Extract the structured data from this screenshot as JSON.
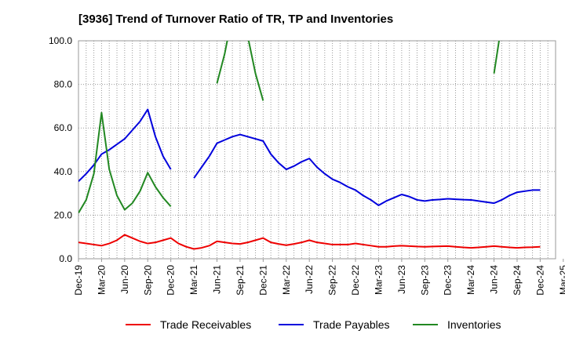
{
  "chart_data": {
    "type": "line",
    "title": "[3936]  Trend of Turnover Ratio of TR, TP and Inventories",
    "xlabel": "",
    "ylabel": "",
    "ylim": [
      0,
      100
    ],
    "yticks": [
      "0.0",
      "20.0",
      "40.0",
      "60.0",
      "80.0",
      "100.0"
    ],
    "xtick_labels": [
      "Dec-19",
      "Mar-20",
      "Jun-20",
      "Sep-20",
      "Dec-20",
      "Mar-21",
      "Jun-21",
      "Sep-21",
      "Dec-21",
      "Mar-22",
      "Jun-22",
      "Sep-22",
      "Dec-22",
      "Mar-23",
      "Jun-23",
      "Sep-23",
      "Dec-23",
      "Mar-24",
      "Jun-24",
      "Sep-24",
      "Dec-24",
      "Mar-25"
    ],
    "grid": true,
    "legend_position": "bottom",
    "x": [
      "Dec-19",
      "Jan-20",
      "Feb-20",
      "Mar-20",
      "Apr-20",
      "May-20",
      "Jun-20",
      "Jul-20",
      "Aug-20",
      "Sep-20",
      "Oct-20",
      "Nov-20",
      "Dec-20",
      "Jan-21",
      "Feb-21",
      "Mar-21",
      "Apr-21",
      "May-21",
      "Jun-21",
      "Jul-21",
      "Aug-21",
      "Sep-21",
      "Oct-21",
      "Nov-21",
      "Dec-21",
      "Jan-22",
      "Feb-22",
      "Mar-22",
      "Apr-22",
      "May-22",
      "Jun-22",
      "Jul-22",
      "Aug-22",
      "Sep-22",
      "Oct-22",
      "Nov-22",
      "Dec-22",
      "Jan-23",
      "Feb-23",
      "Mar-23",
      "Apr-23",
      "May-23",
      "Jun-23",
      "Jul-23",
      "Aug-23",
      "Sep-23",
      "Oct-23",
      "Nov-23",
      "Dec-23",
      "Jan-24",
      "Feb-24",
      "Mar-24",
      "Apr-24",
      "May-24",
      "Jun-24",
      "Jul-24",
      "Aug-24",
      "Sep-24",
      "Oct-24",
      "Nov-24",
      "Dec-24"
    ],
    "series": [
      {
        "name": "Trade Receivables",
        "color": "#ee0000",
        "values": [
          7.5,
          7.0,
          6.5,
          6.0,
          7.0,
          8.5,
          11.0,
          9.5,
          8.0,
          7.0,
          7.5,
          8.5,
          9.5,
          7.0,
          5.5,
          4.5,
          5.0,
          6.0,
          8.0,
          7.5,
          7.0,
          6.8,
          7.5,
          8.5,
          9.5,
          7.5,
          6.8,
          6.2,
          6.8,
          7.5,
          8.5,
          7.5,
          7.0,
          6.5,
          6.5,
          6.5,
          7.0,
          6.5,
          6.0,
          5.5,
          5.5,
          5.8,
          6.0,
          5.8,
          5.6,
          5.5,
          5.6,
          5.7,
          5.8,
          5.5,
          5.2,
          5.0,
          5.2,
          5.5,
          5.8,
          5.5,
          5.2,
          5.0,
          5.2,
          5.3,
          5.5
        ]
      },
      {
        "name": "Trade Payables",
        "color": "#0000dd",
        "values": [
          35.5,
          39.0,
          43.0,
          48.0,
          50.0,
          52.5,
          55.0,
          59.0,
          63.0,
          68.5,
          56.0,
          47.0,
          41.0,
          null,
          null,
          37.0,
          42.0,
          47.0,
          53.0,
          54.5,
          56.0,
          57.0,
          56.0,
          55.0,
          54.0,
          48.0,
          44.0,
          41.0,
          42.5,
          44.5,
          46.0,
          42.0,
          39.0,
          36.5,
          35.0,
          33.0,
          31.5,
          29.0,
          27.0,
          24.5,
          26.5,
          28.0,
          29.5,
          28.5,
          27.0,
          26.5,
          27.0,
          27.2,
          27.5,
          27.3,
          27.1,
          27.0,
          26.5,
          26.0,
          25.5,
          27.0,
          29.0,
          30.5,
          31.0,
          31.5,
          31.5
        ]
      },
      {
        "name": "Inventories",
        "color": "#228822",
        "values": [
          21.0,
          27.0,
          39.0,
          67.0,
          41.0,
          29.0,
          22.5,
          25.5,
          31.0,
          39.5,
          33.0,
          28.0,
          24.0,
          null,
          null,
          null,
          null,
          null,
          80.5,
          94.0,
          112.0,
          120.0,
          102.0,
          85.0,
          72.5,
          null,
          null,
          null,
          null,
          null,
          null,
          null,
          null,
          null,
          null,
          null,
          null,
          null,
          null,
          null,
          null,
          null,
          null,
          null,
          null,
          null,
          null,
          null,
          null,
          null,
          null,
          null,
          null,
          null,
          85.0,
          108.0,
          null,
          null,
          null,
          null,
          null
        ]
      }
    ]
  }
}
